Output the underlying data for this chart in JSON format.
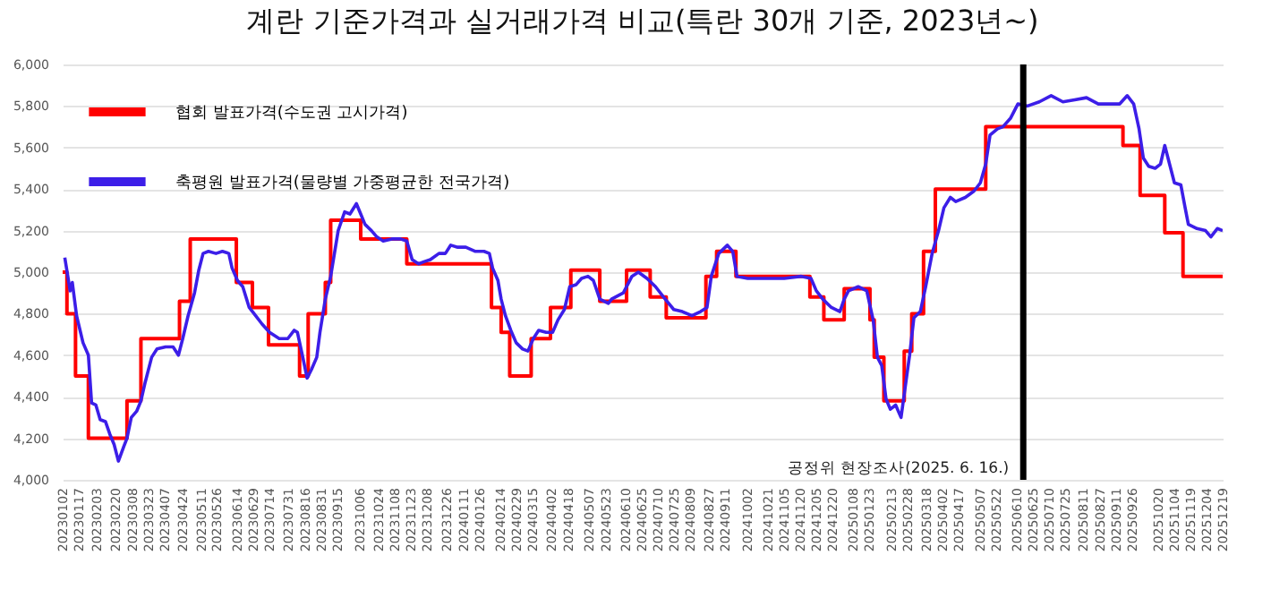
{
  "chart_data": {
    "type": "line",
    "title": "계란 기준가격과 실거래가격 비교(특란 30개 기준, 2023년~)",
    "ylim": [
      4000,
      6000
    ],
    "yticks": [
      {
        "value": 4000,
        "label": "4,000"
      },
      {
        "value": 4200,
        "label": "4,200"
      },
      {
        "value": 4400,
        "label": "4,400"
      },
      {
        "value": 4600,
        "label": "4,600"
      },
      {
        "value": 4800,
        "label": "4,800"
      },
      {
        "value": 5000,
        "label": "5,000"
      },
      {
        "value": 5200,
        "label": "5,200"
      },
      {
        "value": 5400,
        "label": "5,400"
      },
      {
        "value": 5600,
        "label": "5,600"
      },
      {
        "value": 5800,
        "label": "5,800"
      },
      {
        "value": 6000,
        "label": "6,000"
      }
    ],
    "xlim": [
      "2023-01-02",
      "2025-12-19"
    ],
    "xticks": [
      {
        "value": "2023-01-02",
        "label": "20230102"
      },
      {
        "value": "2023-01-17",
        "label": "20230117"
      },
      {
        "value": "2023-02-03",
        "label": "20230203"
      },
      {
        "value": "2023-02-20",
        "label": "20230220"
      },
      {
        "value": "2023-03-08",
        "label": "20230308"
      },
      {
        "value": "2023-03-23",
        "label": "20230323"
      },
      {
        "value": "2023-04-07",
        "label": "20230407"
      },
      {
        "value": "2023-04-24",
        "label": "20230424"
      },
      {
        "value": "2023-05-11",
        "label": "20230511"
      },
      {
        "value": "2023-05-26",
        "label": "20230526"
      },
      {
        "value": "2023-06-14",
        "label": "20230614"
      },
      {
        "value": "2023-06-29",
        "label": "20230629"
      },
      {
        "value": "2023-07-14",
        "label": "20230714"
      },
      {
        "value": "2023-07-31",
        "label": "20230731"
      },
      {
        "value": "2023-08-16",
        "label": "20230816"
      },
      {
        "value": "2023-08-31",
        "label": "20230831"
      },
      {
        "value": "2023-09-15",
        "label": "20230915"
      },
      {
        "value": "2023-10-06",
        "label": "20231006"
      },
      {
        "value": "2023-10-24",
        "label": "20231024"
      },
      {
        "value": "2023-11-08",
        "label": "20231108"
      },
      {
        "value": "2023-11-23",
        "label": "20231123"
      },
      {
        "value": "2023-12-08",
        "label": "20231208"
      },
      {
        "value": "2023-12-26",
        "label": "20231226"
      },
      {
        "value": "2024-01-11",
        "label": "20240111"
      },
      {
        "value": "2024-01-26",
        "label": "20240126"
      },
      {
        "value": "2024-02-14",
        "label": "20240214"
      },
      {
        "value": "2024-02-29",
        "label": "20240229"
      },
      {
        "value": "2024-03-15",
        "label": "20240315"
      },
      {
        "value": "2024-04-02",
        "label": "20240402"
      },
      {
        "value": "2024-04-18",
        "label": "20240418"
      },
      {
        "value": "2024-05-07",
        "label": "20240507"
      },
      {
        "value": "2024-05-23",
        "label": "20240523"
      },
      {
        "value": "2024-06-10",
        "label": "20240610"
      },
      {
        "value": "2024-06-25",
        "label": "20240625"
      },
      {
        "value": "2024-07-10",
        "label": "20240710"
      },
      {
        "value": "2024-07-25",
        "label": "20240725"
      },
      {
        "value": "2024-08-09",
        "label": "20240809"
      },
      {
        "value": "2024-08-27",
        "label": "20240827"
      },
      {
        "value": "2024-09-11",
        "label": "20240911"
      },
      {
        "value": "2024-10-02",
        "label": "20241002"
      },
      {
        "value": "2024-10-21",
        "label": "20241021"
      },
      {
        "value": "2024-11-05",
        "label": "20241105"
      },
      {
        "value": "2024-11-20",
        "label": "20241120"
      },
      {
        "value": "2024-12-05",
        "label": "20241205"
      },
      {
        "value": "2024-12-20",
        "label": "20241220"
      },
      {
        "value": "2025-01-08",
        "label": "20250108"
      },
      {
        "value": "2025-01-23",
        "label": "20250123"
      },
      {
        "value": "2025-02-13",
        "label": "20250213"
      },
      {
        "value": "2025-02-28",
        "label": "20250228"
      },
      {
        "value": "2025-03-18",
        "label": "20250318"
      },
      {
        "value": "2025-04-02",
        "label": "20250402"
      },
      {
        "value": "2025-04-17",
        "label": "20250417"
      },
      {
        "value": "2025-05-07",
        "label": "20250507"
      },
      {
        "value": "2025-05-22",
        "label": "20250522"
      },
      {
        "value": "2025-06-10",
        "label": "20250610"
      },
      {
        "value": "2025-06-25",
        "label": "20250625"
      },
      {
        "value": "2025-07-10",
        "label": "20250710"
      },
      {
        "value": "2025-07-25",
        "label": "20250725"
      },
      {
        "value": "2025-08-11",
        "label": "20250811"
      },
      {
        "value": "2025-08-27",
        "label": "20250827"
      },
      {
        "value": "2025-09-11",
        "label": "20250911"
      },
      {
        "value": "2025-09-26",
        "label": "20250926"
      },
      {
        "value": "2025-10-20",
        "label": "20251020"
      },
      {
        "value": "2025-11-04",
        "label": "20251104"
      },
      {
        "value": "2025-11-19",
        "label": "20251119"
      },
      {
        "value": "2025-12-04",
        "label": "20251204"
      },
      {
        "value": "2025-12-19",
        "label": "20251219"
      }
    ],
    "grid": "y",
    "legend": "top left",
    "series": [
      {
        "name": "협회 발표가격(수도권 고시가격)",
        "type": "step",
        "color": "#ff0000",
        "x": [
          "2023-01-02",
          "2023-01-06",
          "2023-01-14",
          "2023-01-26",
          "2023-03-03",
          "2023-03-16",
          "2023-04-21",
          "2023-05-01",
          "2023-06-13",
          "2023-06-28",
          "2023-07-13",
          "2023-08-11",
          "2023-08-19",
          "2023-09-04",
          "2023-09-09",
          "2023-10-07",
          "2023-11-19",
          "2024-02-06",
          "2024-02-15",
          "2024-02-23",
          "2024-03-14",
          "2024-04-01",
          "2024-04-20",
          "2024-05-17",
          "2024-06-11",
          "2024-07-03",
          "2024-07-18",
          "2024-08-24",
          "2024-09-03",
          "2024-09-21",
          "2024-11-29",
          "2024-12-12",
          "2024-12-31",
          "2025-01-24",
          "2025-01-28",
          "2025-02-06",
          "2025-02-25",
          "2025-03-04",
          "2025-03-15",
          "2025-03-26",
          "2025-05-12",
          "2025-09-17",
          "2025-10-03",
          "2025-10-26",
          "2025-11-12",
          "2025-12-19"
        ],
        "values": [
          5000,
          4800,
          4500,
          4200,
          4380,
          4680,
          4860,
          5160,
          4950,
          4830,
          4650,
          4500,
          4800,
          4950,
          5250,
          5160,
          5040,
          4830,
          4710,
          4500,
          4680,
          4830,
          5010,
          4860,
          5010,
          4880,
          4780,
          4980,
          5100,
          4980,
          4880,
          4770,
          4920,
          4770,
          4590,
          4380,
          4620,
          4800,
          5100,
          5400,
          5700,
          5610,
          5370,
          5190,
          4980,
          4980
        ]
      },
      {
        "name": "축평원 발표가격(물량별 가중평균한 전국가격)",
        "type": "line",
        "color": "#3c1ee8",
        "x": [
          "2023-01-04",
          "2023-01-09",
          "2023-01-11",
          "2023-01-15",
          "2023-01-21",
          "2023-01-26",
          "2023-01-29",
          "2023-02-02",
          "2023-02-06",
          "2023-02-11",
          "2023-02-15",
          "2023-02-19",
          "2023-02-23",
          "2023-02-28",
          "2023-03-03",
          "2023-03-07",
          "2023-03-12",
          "2023-03-16",
          "2023-03-20",
          "2023-03-26",
          "2023-03-31",
          "2023-04-08",
          "2023-04-15",
          "2023-04-20",
          "2023-04-24",
          "2023-04-29",
          "2023-05-05",
          "2023-05-09",
          "2023-05-13",
          "2023-05-18",
          "2023-05-25",
          "2023-05-31",
          "2023-06-06",
          "2023-06-09",
          "2023-06-14",
          "2023-06-19",
          "2023-06-25",
          "2023-07-01",
          "2023-07-07",
          "2023-07-14",
          "2023-07-23",
          "2023-07-31",
          "2023-08-06",
          "2023-08-09",
          "2023-08-14",
          "2023-08-18",
          "2023-08-22",
          "2023-08-27",
          "2023-08-30",
          "2023-09-04",
          "2023-09-09",
          "2023-09-16",
          "2023-09-22",
          "2023-09-27",
          "2023-10-03",
          "2023-10-07",
          "2023-10-11",
          "2023-10-17",
          "2023-10-22",
          "2023-10-28",
          "2023-11-05",
          "2023-11-13",
          "2023-11-19",
          "2023-11-24",
          "2023-11-30",
          "2023-12-05",
          "2023-12-11",
          "2023-12-19",
          "2023-12-25",
          "2023-12-30",
          "2024-01-05",
          "2024-01-13",
          "2024-01-22",
          "2024-01-30",
          "2024-02-04",
          "2024-02-07",
          "2024-02-12",
          "2024-02-15",
          "2024-02-19",
          "2024-02-24",
          "2024-02-29",
          "2024-03-06",
          "2024-03-11",
          "2024-03-16",
          "2024-03-21",
          "2024-03-28",
          "2024-04-03",
          "2024-04-08",
          "2024-04-14",
          "2024-04-19",
          "2024-04-25",
          "2024-04-30",
          "2024-05-06",
          "2024-05-11",
          "2024-05-17",
          "2024-05-25",
          "2024-05-28",
          "2024-06-08",
          "2024-06-16",
          "2024-06-22",
          "2024-06-30",
          "2024-07-08",
          "2024-07-17",
          "2024-07-25",
          "2024-08-02",
          "2024-08-11",
          "2024-08-19",
          "2024-08-25",
          "2024-08-29",
          "2024-09-05",
          "2024-09-13",
          "2024-09-18",
          "2024-09-22",
          "2024-10-02",
          "2024-10-19",
          "2024-11-05",
          "2024-11-21",
          "2024-11-30",
          "2024-12-05",
          "2024-12-11",
          "2024-12-19",
          "2024-12-27",
          "2024-12-31",
          "2025-01-04",
          "2025-01-13",
          "2025-01-21",
          "2025-01-27",
          "2025-01-31",
          "2025-02-04",
          "2025-02-08",
          "2025-02-12",
          "2025-02-17",
          "2025-02-22",
          "2025-02-26",
          "2025-03-02",
          "2025-03-06",
          "2025-03-12",
          "2025-03-17",
          "2025-03-23",
          "2025-03-29",
          "2025-04-03",
          "2025-04-09",
          "2025-04-14",
          "2025-04-23",
          "2025-05-01",
          "2025-05-07",
          "2025-05-12",
          "2025-05-16",
          "2025-05-23",
          "2025-05-28",
          "2025-06-04",
          "2025-06-11",
          "2025-06-20",
          "2025-07-01",
          "2025-07-12",
          "2025-07-23",
          "2025-08-03",
          "2025-08-14",
          "2025-08-25",
          "2025-09-05",
          "2025-09-14",
          "2025-09-21",
          "2025-09-27",
          "2025-10-02",
          "2025-10-06",
          "2025-10-11",
          "2025-10-17",
          "2025-10-22",
          "2025-10-26",
          "2025-10-31",
          "2025-11-04",
          "2025-11-10",
          "2025-11-14",
          "2025-11-17",
          "2025-11-25",
          "2025-12-03",
          "2025-12-08",
          "2025-12-14",
          "2025-12-19"
        ],
        "values": [
          5070,
          4910,
          4950,
          4790,
          4660,
          4600,
          4370,
          4360,
          4290,
          4280,
          4220,
          4170,
          4090,
          4160,
          4200,
          4300,
          4330,
          4380,
          4470,
          4590,
          4630,
          4640,
          4640,
          4600,
          4680,
          4790,
          4900,
          5010,
          5090,
          5100,
          5090,
          5100,
          5090,
          5020,
          4960,
          4930,
          4830,
          4790,
          4750,
          4710,
          4680,
          4680,
          4720,
          4710,
          4590,
          4490,
          4530,
          4590,
          4710,
          4870,
          4980,
          5200,
          5290,
          5280,
          5330,
          5280,
          5230,
          5200,
          5170,
          5150,
          5160,
          5160,
          5150,
          5060,
          5040,
          5050,
          5060,
          5090,
          5090,
          5130,
          5120,
          5120,
          5100,
          5100,
          5090,
          5020,
          4960,
          4870,
          4790,
          4720,
          4660,
          4630,
          4620,
          4680,
          4720,
          4710,
          4710,
          4770,
          4820,
          4930,
          4940,
          4970,
          4980,
          4960,
          4870,
          4850,
          4870,
          4900,
          4980,
          5000,
          4970,
          4930,
          4870,
          4820,
          4810,
          4790,
          4810,
          4830,
          4980,
          5090,
          5130,
          5100,
          4980,
          4970,
          4970,
          4970,
          4980,
          4970,
          4910,
          4870,
          4830,
          4810,
          4870,
          4910,
          4930,
          4910,
          4770,
          4590,
          4550,
          4390,
          4340,
          4360,
          4300,
          4450,
          4600,
          4780,
          4810,
          4930,
          5090,
          5200,
          5310,
          5360,
          5340,
          5360,
          5390,
          5430,
          5520,
          5660,
          5690,
          5700,
          5740,
          5810,
          5800,
          5820,
          5850,
          5820,
          5830,
          5840,
          5810,
          5810,
          5810,
          5850,
          5810,
          5690,
          5550,
          5510,
          5500,
          5520,
          5610,
          5510,
          5430,
          5420,
          5310,
          5230,
          5210,
          5200,
          5170,
          5210,
          5200
        ]
      }
    ],
    "ref_lines": [
      {
        "axis": "x",
        "value": "2025-06-16",
        "color": "#000000"
      }
    ],
    "annotations": [
      {
        "text": "공정위 현장조사(2025. 6. 16.)",
        "x": "2025-06-16",
        "y": 4060
      }
    ]
  }
}
